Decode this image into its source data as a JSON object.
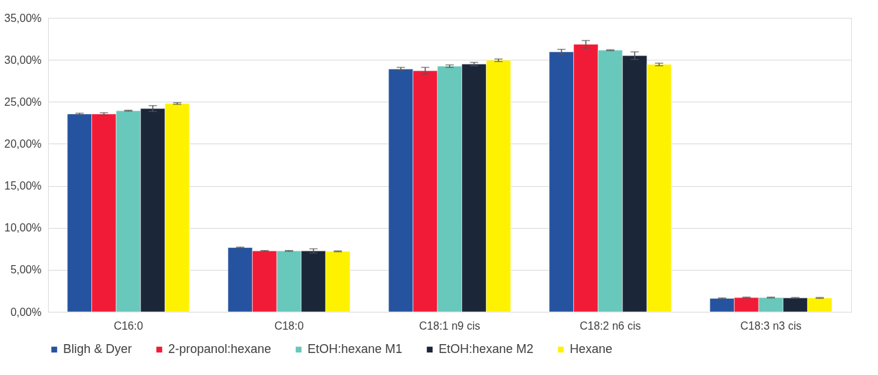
{
  "chart_data": {
    "type": "bar",
    "categories": [
      "C16:0",
      "C18:0",
      "C18:1 n9 cis",
      "C18:2 n6 cis",
      "C18:3 n3 cis"
    ],
    "series": [
      {
        "name": "Bligh & Dyer",
        "color": "#2553a0",
        "values": [
          23.55,
          7.65,
          28.9,
          30.95,
          1.6
        ],
        "errors": [
          0.1,
          0.05,
          0.2,
          0.3,
          0.05
        ]
      },
      {
        "name": "2-propanol:hexane",
        "color": "#f21b37",
        "values": [
          23.55,
          7.25,
          28.7,
          31.85,
          1.7
        ],
        "errors": [
          0.15,
          0.05,
          0.4,
          0.45,
          0.05
        ]
      },
      {
        "name": "EtOH:hexane M1",
        "color": "#67c8bb",
        "values": [
          23.95,
          7.25,
          29.25,
          31.15,
          1.7
        ],
        "errors": [
          0.05,
          0.05,
          0.15,
          0.05,
          0.05
        ]
      },
      {
        "name": "EtOH:hexane M2",
        "color": "#1c2639",
        "values": [
          24.2,
          7.25,
          29.5,
          30.5,
          1.65
        ],
        "errors": [
          0.35,
          0.25,
          0.2,
          0.45,
          0.05
        ]
      },
      {
        "name": "Hexane",
        "color": "#fff200",
        "values": [
          24.8,
          7.2,
          29.95,
          29.45,
          1.65
        ],
        "errors": [
          0.1,
          0.05,
          0.15,
          0.15,
          0.05
        ]
      }
    ],
    "ylim": [
      0,
      35
    ],
    "yticks": [
      {
        "value": 0,
        "label": "0,00%"
      },
      {
        "value": 5,
        "label": "5,00%"
      },
      {
        "value": 10,
        "label": "10,00%"
      },
      {
        "value": 15,
        "label": "15,00%"
      },
      {
        "value": 20,
        "label": "20,00%"
      },
      {
        "value": 25,
        "label": "25,00%"
      },
      {
        "value": 30,
        "label": "30,00%"
      },
      {
        "value": 35,
        "label": "35,00%"
      }
    ],
    "grid": "y",
    "legend": "bottom"
  }
}
